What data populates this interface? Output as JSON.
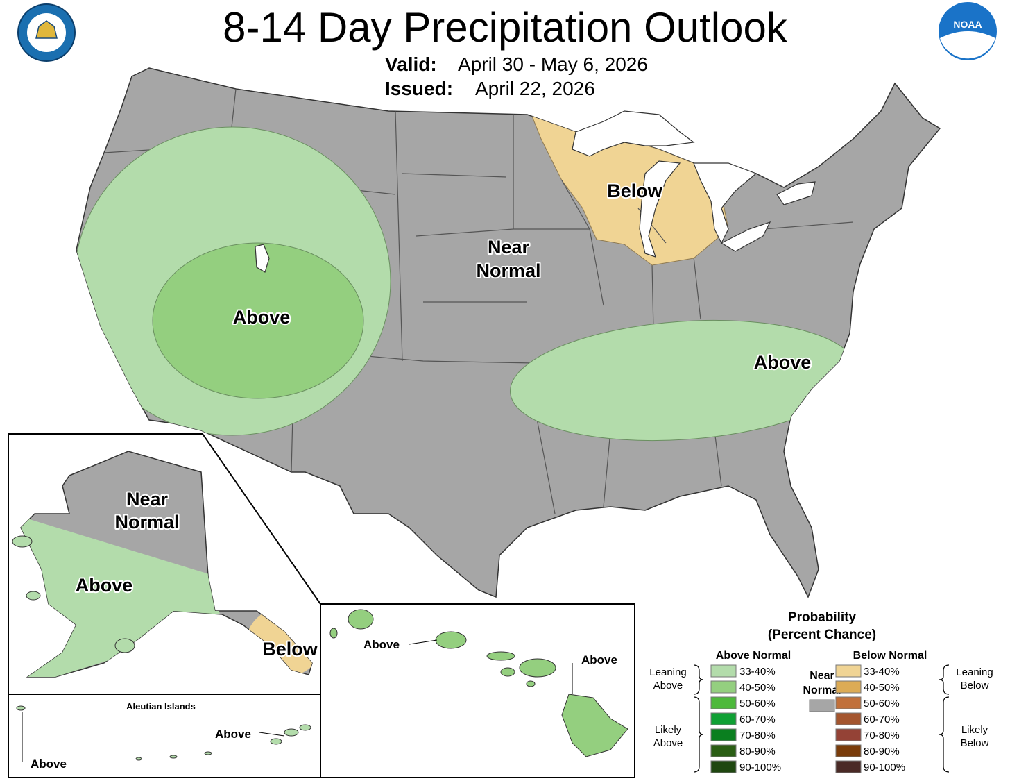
{
  "header": {
    "title": "8-14 Day Precipitation Outlook",
    "valid_label": "Valid:",
    "valid_dates": "April 30 - May 6, 2026",
    "issued_label": "Issued:",
    "issued_date": "April 22, 2026"
  },
  "logos": {
    "noaa": "NOAA"
  },
  "map_labels": {
    "conus_below": "Below",
    "conus_near_normal": [
      "Near",
      "Normal"
    ],
    "conus_above_west": "Above",
    "conus_above_southeast": "Above",
    "alaska_near_normal": [
      "Near",
      "Normal"
    ],
    "alaska_above": "Above",
    "alaska_below": "Below",
    "aleutian_title": "Aleutian Islands",
    "aleutian_above_west": "Above",
    "aleutian_above_east": "Above",
    "hawaii_above_oahu": "Above",
    "hawaii_above_big_island": "Above"
  },
  "legend": {
    "title": [
      "Probability",
      "(Percent Chance)"
    ],
    "above": {
      "heading": "Above Normal",
      "leaning": [
        "Leaning",
        "Above"
      ],
      "likely": [
        "Likely",
        "Above"
      ],
      "entries": [
        {
          "label": "33-40%",
          "color": "#b3dcab"
        },
        {
          "label": "40-50%",
          "color": "#94cf7f"
        },
        {
          "label": "50-60%",
          "color": "#4db93b"
        },
        {
          "label": "60-70%",
          "color": "#0fa034"
        },
        {
          "label": "70-80%",
          "color": "#0a7f1f"
        },
        {
          "label": "80-90%",
          "color": "#2a5e14"
        },
        {
          "label": "90-100%",
          "color": "#1f4710"
        }
      ]
    },
    "near": {
      "label": [
        "Near",
        "Normal"
      ],
      "color": "#a6a6a6"
    },
    "below": {
      "heading": "Below Normal",
      "leaning": [
        "Leaning",
        "Below"
      ],
      "likely": [
        "Likely",
        "Below"
      ],
      "entries": [
        {
          "label": "33-40%",
          "color": "#f0d494"
        },
        {
          "label": "40-50%",
          "color": "#dcab55"
        },
        {
          "label": "50-60%",
          "color": "#c1703a"
        },
        {
          "label": "60-70%",
          "color": "#a4552e"
        },
        {
          "label": "70-80%",
          "color": "#944236"
        },
        {
          "label": "80-90%",
          "color": "#7a3c0a"
        },
        {
          "label": "90-100%",
          "color": "#4a2a26"
        }
      ]
    }
  }
}
